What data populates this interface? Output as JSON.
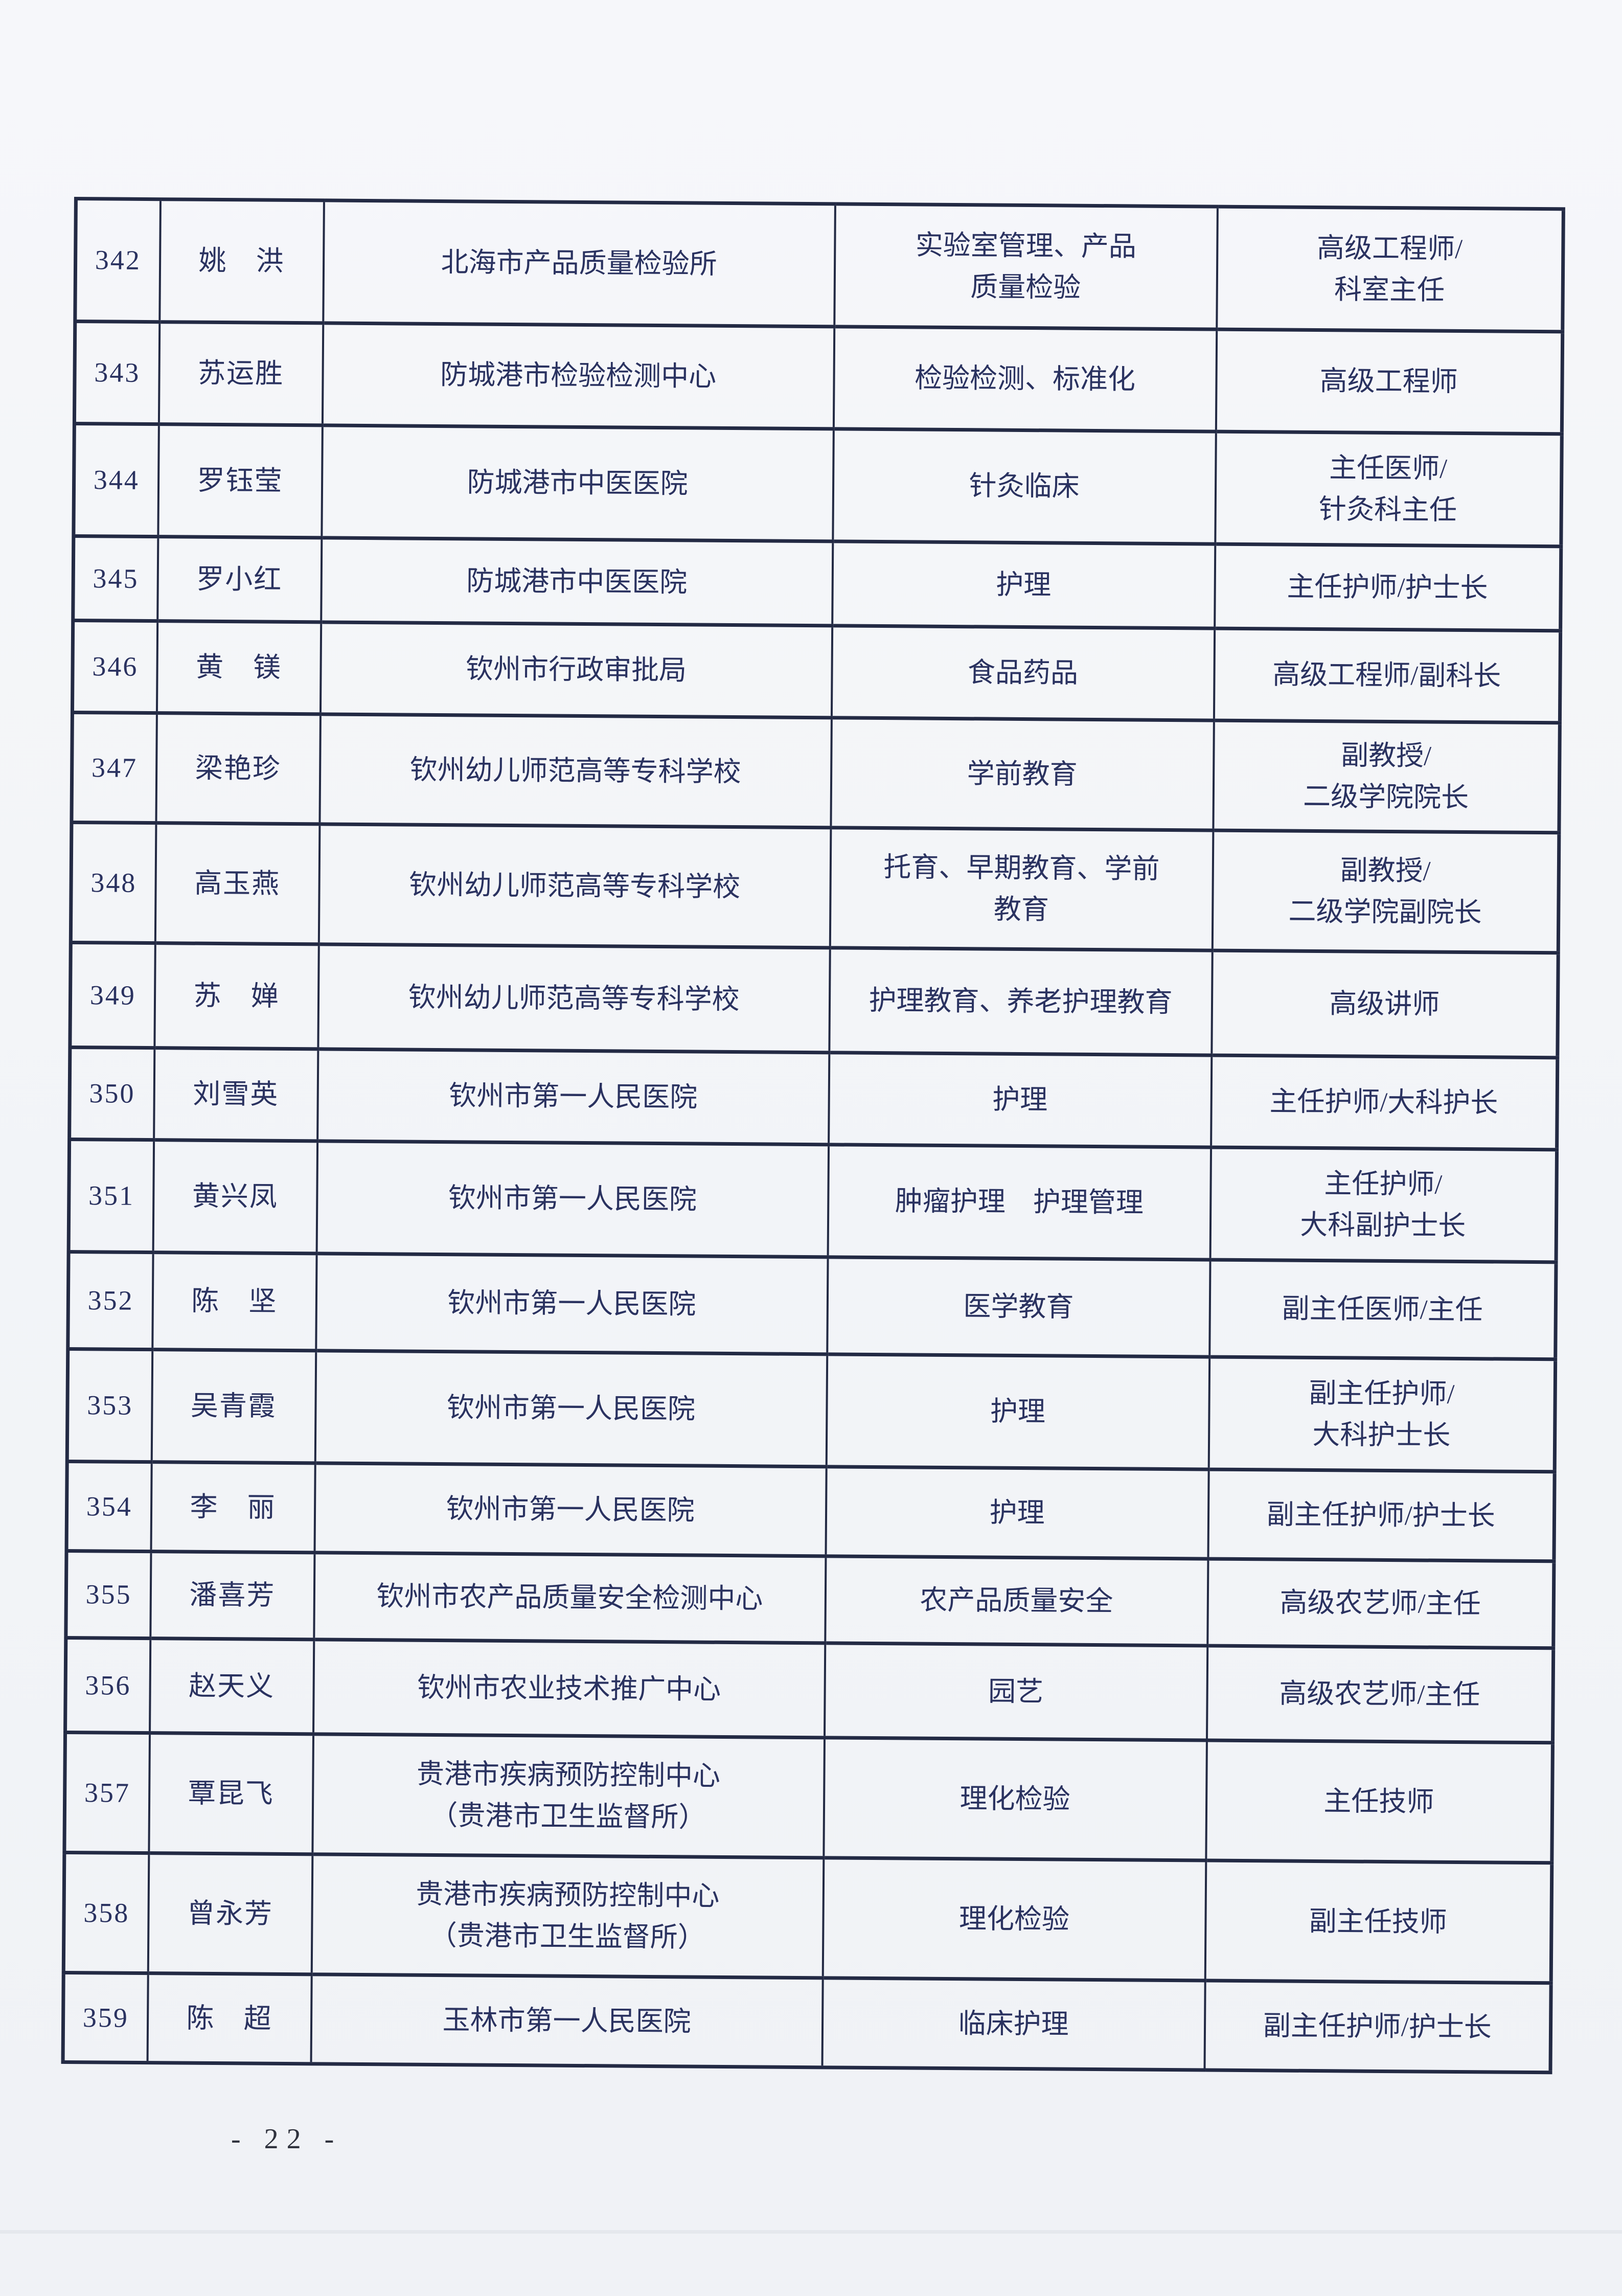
{
  "page_number": "- 22 -",
  "colors": {
    "paper": "#f3f5f8",
    "ink": "#2a3260",
    "line": "#232a44"
  },
  "table": {
    "rows": [
      {
        "no": "342",
        "name": "姚　洪",
        "org": "北海市产品质量检验所",
        "field": "实验室管理、产品\n质量检验",
        "title": "高级工程师/\n科室主任"
      },
      {
        "no": "343",
        "name": "苏运胜",
        "org": "防城港市检验检测中心",
        "field": "检验检测、标准化",
        "title": "高级工程师"
      },
      {
        "no": "344",
        "name": "罗钰莹",
        "org": "防城港市中医医院",
        "field": "针灸临床",
        "title": "主任医师/\n针灸科主任"
      },
      {
        "no": "345",
        "name": "罗小红",
        "org": "防城港市中医医院",
        "field": "护理",
        "title": "主任护师/护士长"
      },
      {
        "no": "346",
        "name": "黄　镁",
        "org": "钦州市行政审批局",
        "field": "食品药品",
        "title": "高级工程师/副科长"
      },
      {
        "no": "347",
        "name": "梁艳珍",
        "org": "钦州幼儿师范高等专科学校",
        "field": "学前教育",
        "title": "副教授/\n二级学院院长"
      },
      {
        "no": "348",
        "name": "高玉燕",
        "org": "钦州幼儿师范高等专科学校",
        "field": "托育、早期教育、学前\n教育",
        "title": "副教授/\n二级学院副院长"
      },
      {
        "no": "349",
        "name": "苏　婵",
        "org": "钦州幼儿师范高等专科学校",
        "field": "护理教育、养老护理教育",
        "title": "高级讲师"
      },
      {
        "no": "350",
        "name": "刘雪英",
        "org": "钦州市第一人民医院",
        "field": "护理",
        "title": "主任护师/大科护长"
      },
      {
        "no": "351",
        "name": "黄兴凤",
        "org": "钦州市第一人民医院",
        "field": "肿瘤护理　护理管理",
        "title": "主任护师/\n大科副护士长"
      },
      {
        "no": "352",
        "name": "陈　坚",
        "org": "钦州市第一人民医院",
        "field": "医学教育",
        "title": "副主任医师/主任"
      },
      {
        "no": "353",
        "name": "吴青霞",
        "org": "钦州市第一人民医院",
        "field": "护理",
        "title": "副主任护师/\n大科护士长"
      },
      {
        "no": "354",
        "name": "李　丽",
        "org": "钦州市第一人民医院",
        "field": "护理",
        "title": "副主任护师/护士长"
      },
      {
        "no": "355",
        "name": "潘喜芳",
        "org": "钦州市农产品质量安全检测中心",
        "field": "农产品质量安全",
        "title": "高级农艺师/主任"
      },
      {
        "no": "356",
        "name": "赵天义",
        "org": "钦州市农业技术推广中心",
        "field": "园艺",
        "title": "高级农艺师/主任"
      },
      {
        "no": "357",
        "name": "覃昆飞",
        "org": "贵港市疾病预防控制中心\n（贵港市卫生监督所）",
        "field": "理化检验",
        "title": "主任技师"
      },
      {
        "no": "358",
        "name": "曾永芳",
        "org": "贵港市疾病预防控制中心\n（贵港市卫生监督所）",
        "field": "理化检验",
        "title": "副主任技师"
      },
      {
        "no": "359",
        "name": "陈　超",
        "org": "玉林市第一人民医院",
        "field": "临床护理",
        "title": "副主任护师/护士长"
      }
    ]
  }
}
